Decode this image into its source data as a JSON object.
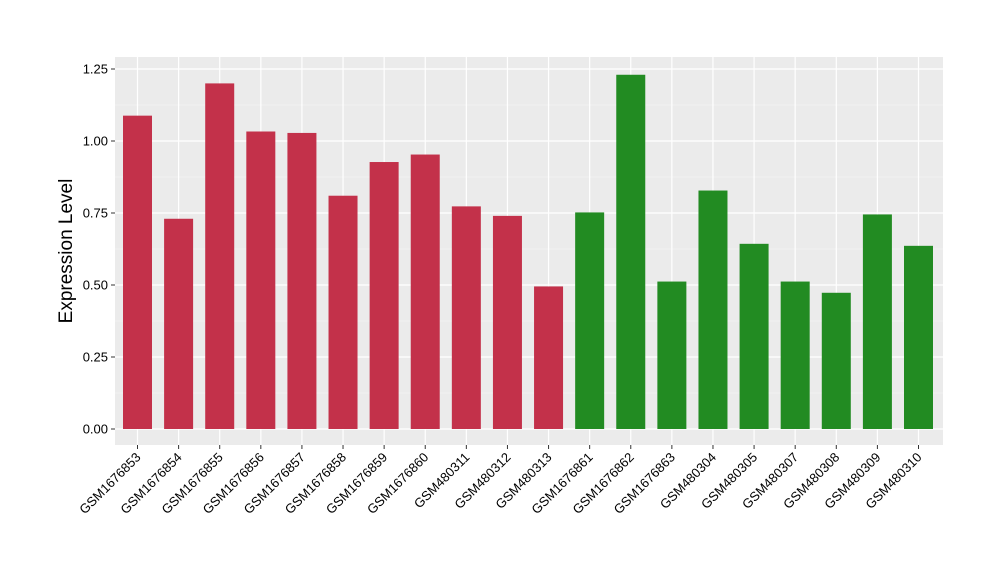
{
  "chart_data": {
    "type": "bar",
    "title": "",
    "xlabel": "",
    "ylabel": "Expression Level",
    "ylim": [
      0,
      1.28
    ],
    "yticks": [
      0.0,
      0.25,
      0.5,
      0.75,
      1.0,
      1.25
    ],
    "ytick_labels": [
      "0.00",
      "0.25",
      "0.50",
      "0.75",
      "1.00",
      "1.25"
    ],
    "grid": true,
    "legend": "none",
    "colors": {
      "panel_background": "#ebebeb",
      "grid_major": "#ffffff",
      "group_red": "#c3314a",
      "group_green": "#228b22"
    },
    "categories": [
      "GSM1676853",
      "GSM1676854",
      "GSM1676855",
      "GSM1676856",
      "GSM1676857",
      "GSM1676858",
      "GSM1676859",
      "GSM1676860",
      "GSM480311",
      "GSM480312",
      "GSM480313",
      "GSM1676861",
      "GSM1676862",
      "GSM1676863",
      "GSM480304",
      "GSM480305",
      "GSM480307",
      "GSM480308",
      "GSM480309",
      "GSM480310"
    ],
    "values": [
      1.088,
      0.73,
      1.2,
      1.033,
      1.028,
      0.81,
      0.927,
      0.953,
      0.773,
      0.74,
      0.495,
      0.752,
      1.23,
      0.512,
      0.828,
      0.643,
      0.512,
      0.473,
      0.745,
      0.636
    ],
    "bar_colors": [
      "#c3314a",
      "#c3314a",
      "#c3314a",
      "#c3314a",
      "#c3314a",
      "#c3314a",
      "#c3314a",
      "#c3314a",
      "#c3314a",
      "#c3314a",
      "#c3314a",
      "#228b22",
      "#228b22",
      "#228b22",
      "#228b22",
      "#228b22",
      "#228b22",
      "#228b22",
      "#228b22",
      "#228b22"
    ]
  }
}
